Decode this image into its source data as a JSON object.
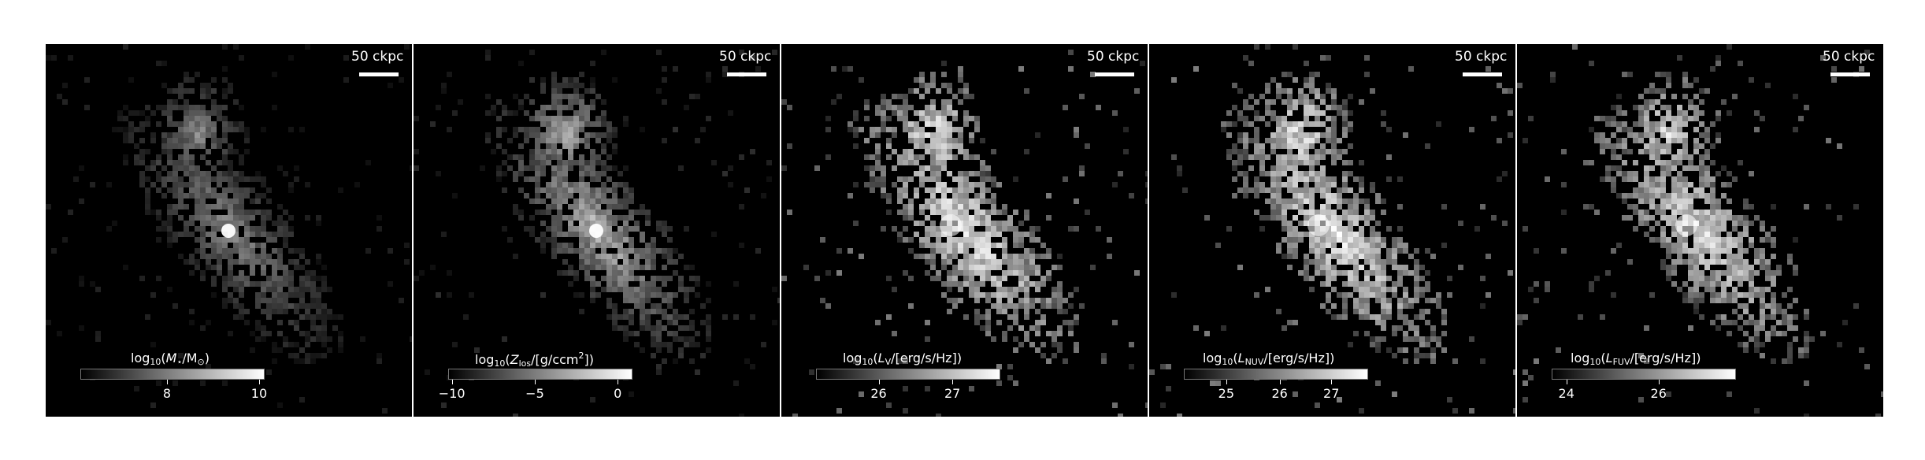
{
  "panels": [
    {
      "id": "stellar-mass",
      "scale_label": "50 ckpc",
      "cbar_label": {
        "pre": "log",
        "sub1": "10",
        "open": "(",
        "var": "M",
        "sub2": "⋆",
        "mid": "/M",
        "sub3": "⊙",
        "close": ")"
      },
      "ticks": [
        {
          "label": "8",
          "frac": 0.47
        },
        {
          "label": "10",
          "frac": 0.97
        }
      ],
      "brightness": 0.55,
      "seed": 3
    },
    {
      "id": "metallicity",
      "scale_label": "50 ckpc",
      "cbar_label": {
        "pre": "log",
        "sub1": "10",
        "open": "(",
        "var": "Z",
        "sub2": "los",
        "mid": "/[g/ccm",
        "sup": "2",
        "close": "])"
      },
      "ticks": [
        {
          "label": "−10",
          "frac": 0.02
        },
        {
          "label": "−5",
          "frac": 0.47
        },
        {
          "label": "0",
          "frac": 0.92
        }
      ],
      "brightness": 0.75,
      "seed": 7
    },
    {
      "id": "v-band",
      "scale_label": "50 ckpc",
      "cbar_label": {
        "pre": "log",
        "sub1": "10",
        "open": "(",
        "var": "L",
        "sub2": "V",
        "mid": "/[erg/s/Hz])",
        "close": ""
      },
      "ticks": [
        {
          "label": "26",
          "frac": 0.34
        },
        {
          "label": "27",
          "frac": 0.74
        }
      ],
      "brightness": 1.0,
      "seed": 11
    },
    {
      "id": "nuv",
      "scale_label": "50 ckpc",
      "cbar_label": {
        "pre": "log",
        "sub1": "10",
        "open": "(",
        "var": "L",
        "sub2": "NUV",
        "mid": "/[erg/s/Hz])",
        "close": ""
      },
      "ticks": [
        {
          "label": "25",
          "frac": 0.23
        },
        {
          "label": "26",
          "frac": 0.52
        },
        {
          "label": "27",
          "frac": 0.8
        }
      ],
      "brightness": 1.0,
      "seed": 19
    },
    {
      "id": "fuv",
      "scale_label": "50 ckpc",
      "cbar_label": {
        "pre": "log",
        "sub1": "10",
        "open": "(",
        "var": "L",
        "sub2": "FUV",
        "mid": "/[erg/s/Hz])",
        "close": ""
      },
      "ticks": [
        {
          "label": "24",
          "frac": 0.08
        },
        {
          "label": "26",
          "frac": 0.58
        }
      ],
      "brightness": 0.95,
      "seed": 23
    }
  ]
}
